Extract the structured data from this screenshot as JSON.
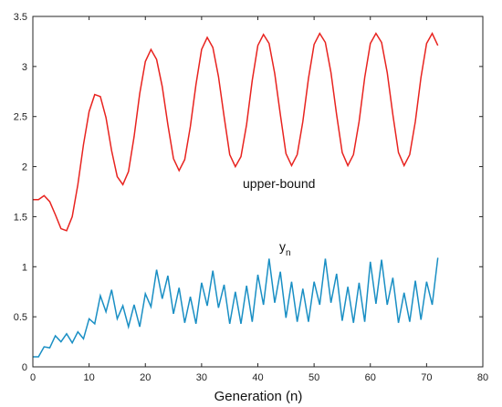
{
  "chart_data": {
    "type": "line",
    "title": "",
    "xlabel": "Generation (n)",
    "ylabel": "",
    "xlim": [
      0,
      80
    ],
    "ylim": [
      0,
      3.5
    ],
    "xticks": [
      "0",
      "10",
      "20",
      "30",
      "40",
      "50",
      "60",
      "70",
      "80"
    ],
    "yticks": [
      "0",
      "0.5",
      "1",
      "1.5",
      "2",
      "2.5",
      "3",
      "3.5"
    ],
    "grid": false,
    "colors": {
      "upper": "#e8231f",
      "yn": "#1a8fc4"
    },
    "annotations": {
      "upper": "upper-bound",
      "yn_main": "y",
      "yn_sub": "n"
    },
    "series": [
      {
        "key": "upper",
        "x": [
          0,
          1,
          2,
          3,
          4,
          5,
          6,
          7,
          8,
          9,
          10,
          11,
          12,
          13,
          14,
          15,
          16,
          17,
          18,
          19,
          20,
          21,
          22,
          23,
          24,
          25,
          26,
          27,
          28,
          29,
          30,
          31,
          32,
          33,
          34,
          35,
          36,
          37,
          38,
          39,
          40,
          41,
          42,
          43,
          44,
          45,
          46,
          47,
          48,
          49,
          50,
          51,
          52,
          53,
          54,
          55,
          56,
          57,
          58,
          59,
          60,
          61,
          62,
          63,
          64,
          65,
          66,
          67,
          68,
          69,
          70,
          71,
          72
        ],
        "values": [
          1.67,
          1.67,
          1.71,
          1.65,
          1.52,
          1.38,
          1.36,
          1.5,
          1.82,
          2.22,
          2.55,
          2.72,
          2.7,
          2.49,
          2.16,
          1.9,
          1.82,
          1.95,
          2.3,
          2.73,
          3.05,
          3.17,
          3.07,
          2.8,
          2.42,
          2.08,
          1.96,
          2.07,
          2.4,
          2.82,
          3.17,
          3.29,
          3.19,
          2.9,
          2.5,
          2.12,
          2.0,
          2.1,
          2.42,
          2.86,
          3.21,
          3.32,
          3.23,
          2.93,
          2.52,
          2.13,
          2.01,
          2.12,
          2.45,
          2.88,
          3.22,
          3.33,
          3.24,
          2.94,
          2.52,
          2.14,
          2.01,
          2.12,
          2.45,
          2.89,
          3.23,
          3.33,
          3.24,
          2.94,
          2.52,
          2.14,
          2.01,
          2.12,
          2.45,
          2.89,
          3.23,
          3.33,
          3.21
        ]
      },
      {
        "key": "yn",
        "x": [
          0,
          1,
          2,
          3,
          4,
          5,
          6,
          7,
          8,
          9,
          10,
          11,
          12,
          13,
          14,
          15,
          16,
          17,
          18,
          19,
          20,
          21,
          22,
          23,
          24,
          25,
          26,
          27,
          28,
          29,
          30,
          31,
          32,
          33,
          34,
          35,
          36,
          37,
          38,
          39,
          40,
          41,
          42,
          43,
          44,
          45,
          46,
          47,
          48,
          49,
          50,
          51,
          52,
          53,
          54,
          55,
          56,
          57,
          58,
          59,
          60,
          61,
          62,
          63,
          64,
          65,
          66,
          67,
          68,
          69,
          70,
          71,
          72
        ],
        "values": [
          0.1,
          0.1,
          0.2,
          0.19,
          0.31,
          0.25,
          0.33,
          0.24,
          0.35,
          0.28,
          0.48,
          0.43,
          0.71,
          0.55,
          0.77,
          0.48,
          0.61,
          0.4,
          0.62,
          0.4,
          0.73,
          0.6,
          0.97,
          0.68,
          0.91,
          0.53,
          0.79,
          0.44,
          0.7,
          0.43,
          0.84,
          0.61,
          0.96,
          0.59,
          0.82,
          0.43,
          0.75,
          0.43,
          0.81,
          0.45,
          0.92,
          0.62,
          1.08,
          0.64,
          0.95,
          0.49,
          0.85,
          0.45,
          0.78,
          0.45,
          0.85,
          0.62,
          1.08,
          0.64,
          0.93,
          0.46,
          0.8,
          0.44,
          0.84,
          0.45,
          1.05,
          0.63,
          1.07,
          0.62,
          0.89,
          0.44,
          0.74,
          0.45,
          0.86,
          0.47,
          0.85,
          0.62,
          1.09
        ]
      }
    ]
  }
}
